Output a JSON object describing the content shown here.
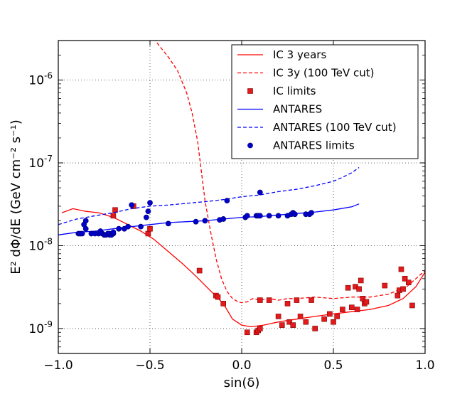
{
  "chart_data": {
    "type": "line",
    "title": "",
    "xlabel": "sin(δ)",
    "ylabel": "E² dΦ/dE (GeV cm⁻² s⁻¹)",
    "xlim": [
      -1.0,
      1.0
    ],
    "ylim": [
      5e-10,
      3e-06
    ],
    "yscale": "log",
    "grid": true,
    "legend_position": "top-right",
    "x_ticks": [
      {
        "value": -1.0,
        "label": "−1.0"
      },
      {
        "value": -0.5,
        "label": "−0.5"
      },
      {
        "value": 0.0,
        "label": "0.0"
      },
      {
        "value": 0.5,
        "label": "0.5"
      },
      {
        "value": 1.0,
        "label": "1.0"
      }
    ],
    "y_ticks": [
      {
        "value": 1e-09,
        "base": "10",
        "exp": "-9"
      },
      {
        "value": 1e-08,
        "base": "10",
        "exp": "-8"
      },
      {
        "value": 1e-07,
        "base": "10",
        "exp": "-7"
      },
      {
        "value": 1e-06,
        "base": "10",
        "exp": "-6"
      }
    ],
    "series": [
      {
        "name": "IC 3 years",
        "kind": "line",
        "style": "solid",
        "color": "#ff0000",
        "x": [
          -0.98,
          -0.92,
          -0.85,
          -0.78,
          -0.7,
          -0.62,
          -0.55,
          -0.48,
          -0.4,
          -0.32,
          -0.25,
          -0.18,
          -0.1,
          -0.05,
          0.0,
          0.05,
          0.12,
          0.2,
          0.3,
          0.4,
          0.5,
          0.6,
          0.7,
          0.8,
          0.88,
          0.95,
          1.0
        ],
        "y": [
          2.5e-08,
          2.8e-08,
          2.6e-08,
          2.5e-08,
          2.2e-08,
          1.8e-08,
          1.5e-08,
          1.2e-08,
          8.5e-09,
          6e-09,
          4.3e-09,
          3e-09,
          2e-09,
          1.3e-09,
          1.1e-09,
          1.05e-09,
          1.1e-09,
          1.2e-09,
          1.3e-09,
          1.4e-09,
          1.5e-09,
          1.6e-09,
          1.7e-09,
          1.9e-09,
          2.3e-09,
          3.2e-09,
          4.8e-09
        ]
      },
      {
        "name": "IC 3y (100 TeV cut)",
        "kind": "line",
        "style": "dashed",
        "color": "#ff0000",
        "x": [
          -0.48,
          -0.45,
          -0.4,
          -0.35,
          -0.3,
          -0.27,
          -0.24,
          -0.22,
          -0.2,
          -0.17,
          -0.14,
          -0.11,
          -0.08,
          -0.05,
          -0.02,
          0.0,
          0.03,
          0.06,
          0.1,
          0.15,
          0.2,
          0.25,
          0.3,
          0.4,
          0.5,
          0.6,
          0.7,
          0.8,
          0.9,
          1.0
        ],
        "y": [
          3.2e-06,
          2.6e-06,
          1.9e-06,
          1.3e-06,
          7e-07,
          4e-07,
          1.8e-07,
          8e-08,
          3.5e-08,
          1.5e-08,
          7e-09,
          4e-09,
          2.8e-09,
          2.3e-09,
          2.1e-09,
          2.05e-09,
          2.1e-09,
          2.3e-09,
          2.2e-09,
          2.3e-09,
          2.2e-09,
          2.3e-09,
          2.3e-09,
          2.4e-09,
          2.3e-09,
          2.4e-09,
          2.4e-09,
          2.6e-09,
          3.2e-09,
          5e-09
        ]
      },
      {
        "name": "IC limits",
        "kind": "markers",
        "marker": "square",
        "color": "#ff0000",
        "x": [
          -0.7,
          -0.69,
          -0.59,
          -0.51,
          -0.5,
          -0.23,
          -0.14,
          -0.13,
          -0.1,
          0.03,
          0.08,
          0.09,
          0.1,
          0.1,
          0.15,
          0.2,
          0.22,
          0.25,
          0.26,
          0.28,
          0.3,
          0.32,
          0.35,
          0.38,
          0.4,
          0.45,
          0.48,
          0.5,
          0.52,
          0.55,
          0.58,
          0.6,
          0.62,
          0.63,
          0.64,
          0.65,
          0.66,
          0.67,
          0.68,
          0.78,
          0.85,
          0.86,
          0.87,
          0.88,
          0.89,
          0.91,
          0.93
        ],
        "y": [
          2.3e-08,
          2.7e-08,
          3e-08,
          1.4e-08,
          1.6e-08,
          5e-09,
          2.5e-09,
          2.4e-09,
          2e-09,
          9e-10,
          9e-10,
          9.5e-10,
          1e-09,
          2.2e-09,
          2.2e-09,
          1.4e-09,
          1.1e-09,
          2e-09,
          1.2e-09,
          1.1e-09,
          2.2e-09,
          1.4e-09,
          1.2e-09,
          2.2e-09,
          1e-09,
          1.3e-09,
          1.5e-09,
          1.2e-09,
          1.4e-09,
          1.7e-09,
          3.1e-09,
          1.8e-09,
          3.2e-09,
          1.7e-09,
          3e-09,
          3.8e-09,
          2.3e-09,
          2e-09,
          2.1e-09,
          3.3e-09,
          2.5e-09,
          2.9e-09,
          5.2e-09,
          3e-09,
          4e-09,
          3.6e-09,
          1.9e-09
        ]
      },
      {
        "name": "ANTARES",
        "kind": "line",
        "style": "solid",
        "color": "#0000ff",
        "x": [
          -1.0,
          -0.9,
          -0.8,
          -0.7,
          -0.6,
          -0.5,
          -0.4,
          -0.3,
          -0.2,
          -0.1,
          0.0,
          0.1,
          0.2,
          0.3,
          0.4,
          0.5,
          0.6,
          0.64
        ],
        "y": [
          1.35e-08,
          1.45e-08,
          1.5e-08,
          1.6e-08,
          1.7e-08,
          1.8e-08,
          1.9e-08,
          1.95e-08,
          2e-08,
          2.1e-08,
          2.2e-08,
          2.25e-08,
          2.35e-08,
          2.45e-08,
          2.55e-08,
          2.7e-08,
          2.95e-08,
          3.2e-08
        ]
      },
      {
        "name": "ANTARES (100 TeV cut)",
        "kind": "line",
        "style": "dashed",
        "color": "#0000ff",
        "x": [
          -1.0,
          -0.9,
          -0.8,
          -0.7,
          -0.6,
          -0.5,
          -0.4,
          -0.3,
          -0.2,
          -0.1,
          0.0,
          0.1,
          0.2,
          0.3,
          0.4,
          0.5,
          0.55,
          0.6,
          0.64
        ],
        "y": [
          1.8e-08,
          2.1e-08,
          2.3e-08,
          2.5e-08,
          2.8e-08,
          3e-08,
          3.1e-08,
          3.25e-08,
          3.4e-08,
          3.6e-08,
          3.9e-08,
          4.1e-08,
          4.5e-08,
          4.8e-08,
          5.3e-08,
          6e-08,
          6.7e-08,
          7.6e-08,
          8.8e-08
        ]
      },
      {
        "name": "ANTARES limits",
        "kind": "markers",
        "marker": "circle",
        "color": "#0000cc",
        "x": [
          -0.89,
          -0.88,
          -0.87,
          -0.86,
          -0.85,
          -0.85,
          -0.82,
          -0.8,
          -0.78,
          -0.77,
          -0.76,
          -0.75,
          -0.74,
          -0.73,
          -0.72,
          -0.72,
          -0.71,
          -0.7,
          -0.7,
          -0.67,
          -0.64,
          -0.62,
          -0.6,
          -0.55,
          -0.52,
          -0.51,
          -0.5,
          -0.4,
          -0.25,
          -0.2,
          -0.12,
          -0.1,
          -0.08,
          0.02,
          0.03,
          0.08,
          0.09,
          0.1,
          0.1,
          0.15,
          0.2,
          0.25,
          0.27,
          0.28,
          0.29,
          0.35,
          0.37,
          0.38
        ],
        "y": [
          1.4e-08,
          1.4e-08,
          1.4e-08,
          1.8e-08,
          1.6e-08,
          2e-08,
          1.4e-08,
          1.4e-08,
          1.4e-08,
          1.5e-08,
          1.4e-08,
          1.35e-08,
          1.35e-08,
          1.4e-08,
          1.35e-08,
          1.4e-08,
          1.35e-08,
          1.4e-08,
          1.45e-08,
          1.6e-08,
          1.6e-08,
          1.7e-08,
          3.1e-08,
          1.7e-08,
          2.2e-08,
          2.6e-08,
          3.3e-08,
          1.85e-08,
          1.95e-08,
          2e-08,
          2.05e-08,
          2.1e-08,
          3.5e-08,
          2.2e-08,
          2.3e-08,
          2.3e-08,
          2.3e-08,
          2.3e-08,
          4.4e-08,
          2.3e-08,
          2.3e-08,
          2.3e-08,
          2.4e-08,
          2.5e-08,
          2.4e-08,
          2.4e-08,
          2.4e-08,
          2.5e-08
        ]
      }
    ]
  }
}
